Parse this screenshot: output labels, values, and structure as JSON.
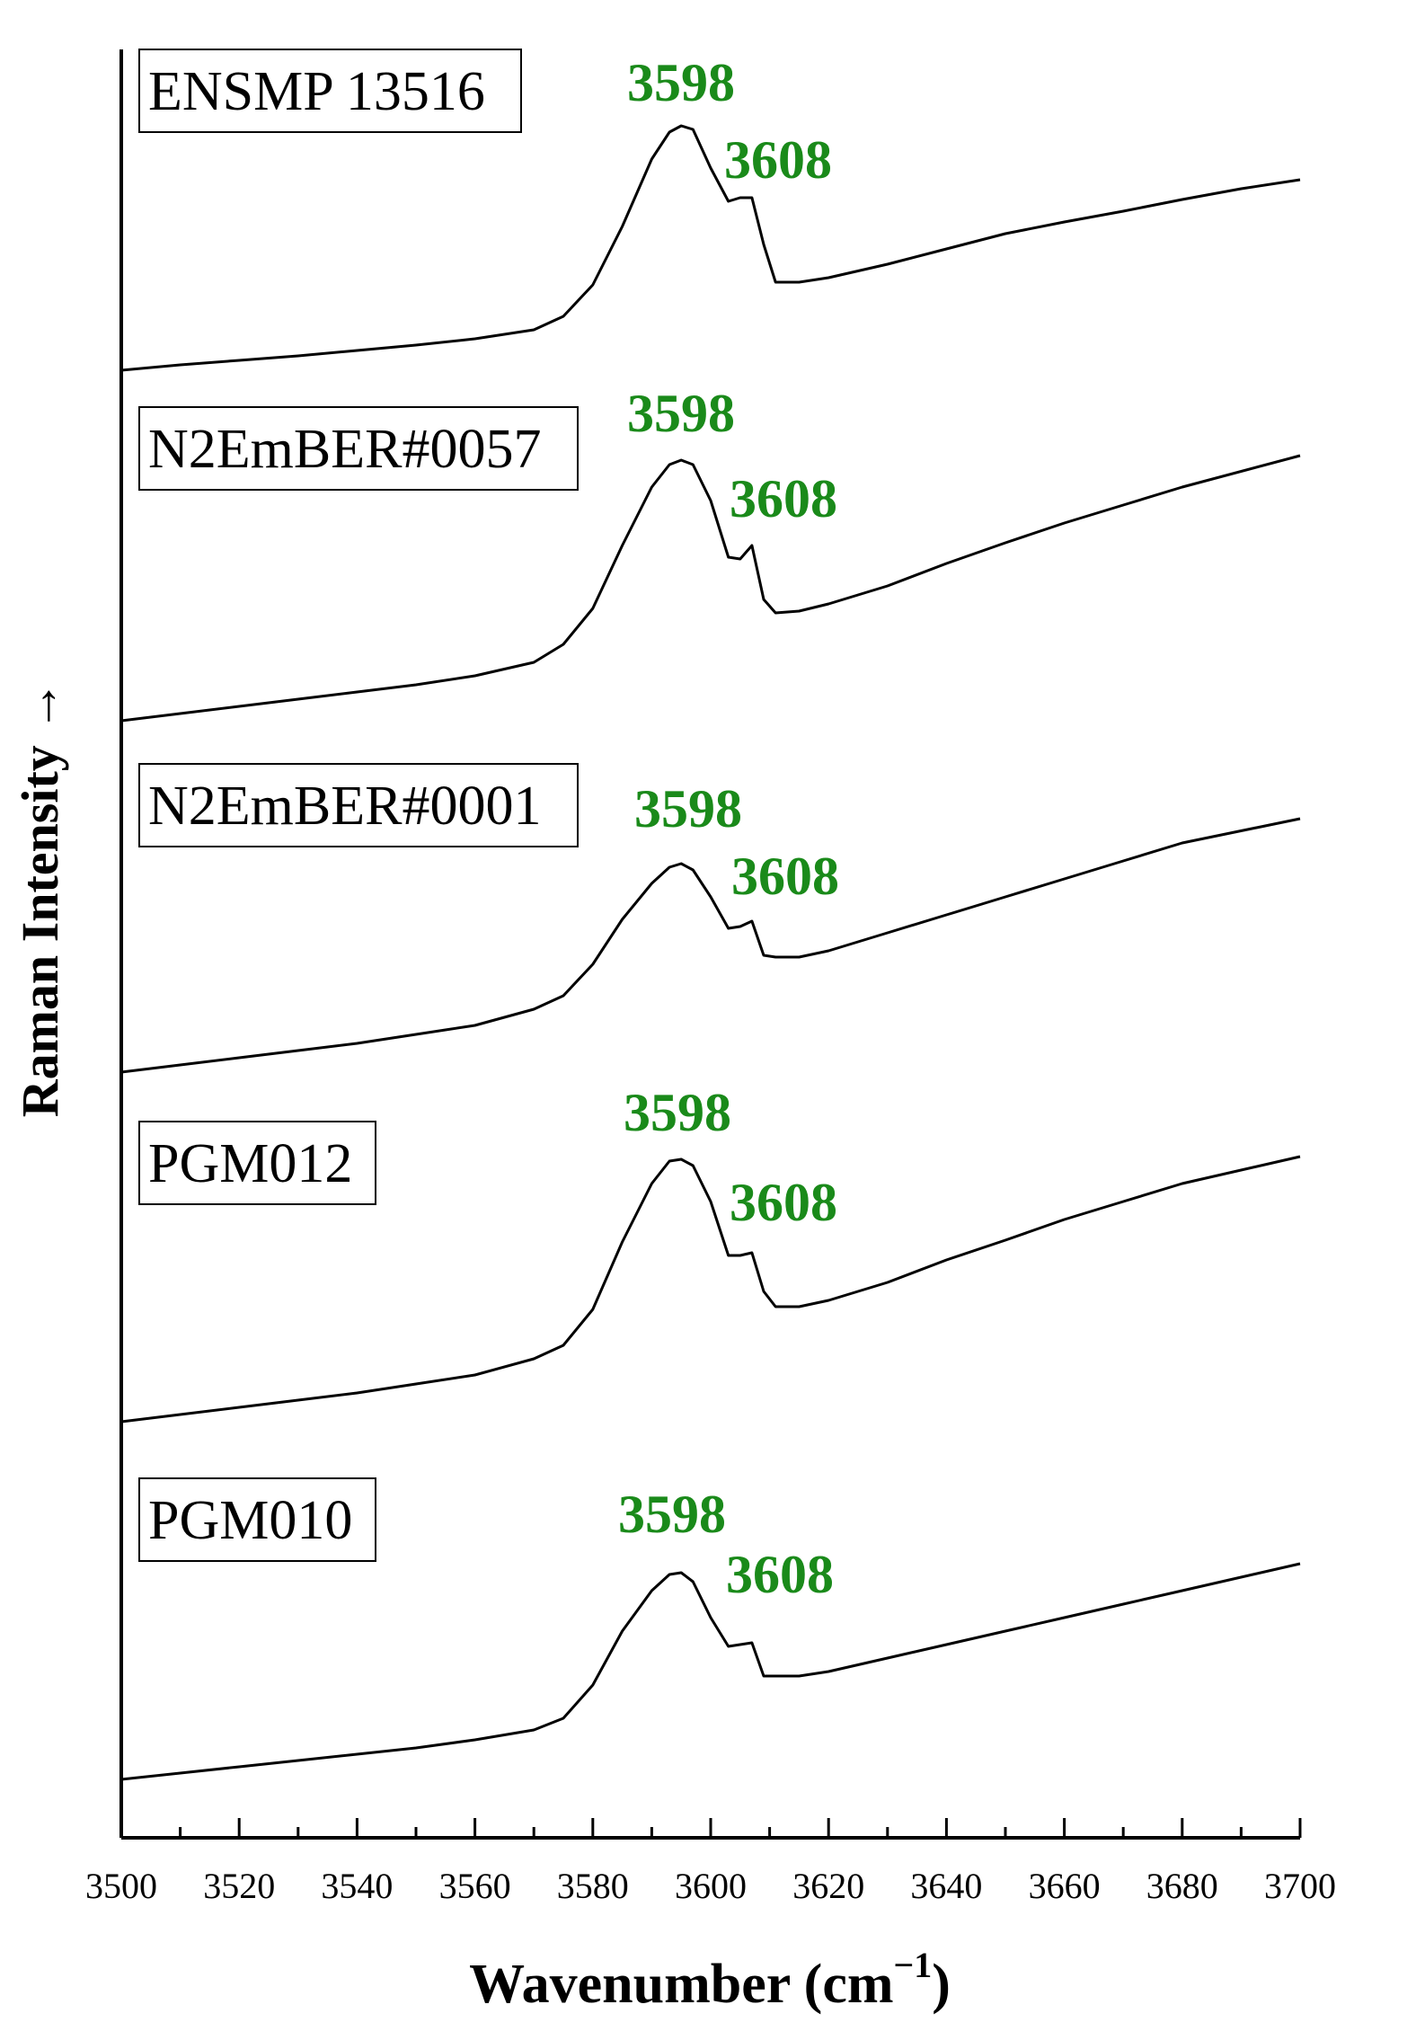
{
  "chart_data": {
    "type": "line",
    "xlabel": "Wavenumber (cm",
    "xlabel_sup": "−1",
    "xlabel_close": ")",
    "ylabel": "Raman Intensity →",
    "xlim": [
      3500,
      3700
    ],
    "x_ticks": [
      3500,
      3520,
      3540,
      3560,
      3580,
      3600,
      3620,
      3640,
      3660,
      3680,
      3700
    ],
    "x_minor_step": 10,
    "y_ticks_shown": false,
    "grid": false,
    "legend": "none",
    "line_color": "#000000",
    "peak_label_color": "#1a8a1a",
    "series": [
      {
        "name": "ENSMP 13516",
        "x": [
          3500,
          3510,
          3520,
          3530,
          3540,
          3550,
          3560,
          3570,
          3575,
          3580,
          3585,
          3590,
          3593,
          3595,
          3597,
          3600,
          3603,
          3605,
          3607,
          3609,
          3611,
          3615,
          3620,
          3630,
          3640,
          3650,
          3660,
          3670,
          3680,
          3690,
          3700
        ],
        "y": [
          0.0,
          0.06,
          0.11,
          0.16,
          0.22,
          0.28,
          0.35,
          0.45,
          0.6,
          0.95,
          1.6,
          2.35,
          2.65,
          2.72,
          2.68,
          2.25,
          1.88,
          1.92,
          1.92,
          1.4,
          0.98,
          0.98,
          1.03,
          1.18,
          1.35,
          1.52,
          1.65,
          1.77,
          1.9,
          2.02,
          2.12
        ],
        "peaks": [
          {
            "x": 3598,
            "label": "3598"
          },
          {
            "x": 3608,
            "label": "3608"
          }
        ]
      },
      {
        "name": "N2EmBER#0057",
        "x": [
          3500,
          3510,
          3520,
          3530,
          3540,
          3550,
          3560,
          3570,
          3575,
          3580,
          3585,
          3590,
          3593,
          3595,
          3597,
          3600,
          3603,
          3605,
          3607,
          3609,
          3611,
          3615,
          3620,
          3630,
          3640,
          3650,
          3660,
          3670,
          3680,
          3700
        ],
        "y": [
          0.0,
          0.08,
          0.16,
          0.24,
          0.32,
          0.4,
          0.5,
          0.65,
          0.85,
          1.25,
          1.95,
          2.6,
          2.85,
          2.9,
          2.85,
          2.45,
          1.82,
          1.8,
          1.95,
          1.35,
          1.2,
          1.22,
          1.3,
          1.5,
          1.75,
          1.98,
          2.2,
          2.4,
          2.6,
          2.95
        ],
        "peaks": [
          {
            "x": 3598,
            "label": "3598"
          },
          {
            "x": 3608,
            "label": "3608"
          }
        ]
      },
      {
        "name": "N2EmBER#0001",
        "x": [
          3500,
          3510,
          3520,
          3530,
          3540,
          3550,
          3560,
          3570,
          3575,
          3580,
          3585,
          3590,
          3593,
          3595,
          3597,
          3600,
          3603,
          3605,
          3607,
          3609,
          3611,
          3615,
          3620,
          3630,
          3640,
          3650,
          3660,
          3670,
          3680,
          3700
        ],
        "y": [
          0.0,
          0.08,
          0.16,
          0.24,
          0.32,
          0.42,
          0.52,
          0.7,
          0.85,
          1.2,
          1.7,
          2.1,
          2.28,
          2.32,
          2.25,
          1.95,
          1.6,
          1.62,
          1.68,
          1.3,
          1.28,
          1.28,
          1.35,
          1.55,
          1.75,
          1.95,
          2.15,
          2.35,
          2.55,
          2.82
        ],
        "peaks": [
          {
            "x": 3598,
            "label": "3598"
          },
          {
            "x": 3608,
            "label": "3608"
          }
        ]
      },
      {
        "name": "PGM012",
        "x": [
          3500,
          3510,
          3520,
          3530,
          3540,
          3550,
          3560,
          3570,
          3575,
          3580,
          3585,
          3590,
          3593,
          3595,
          3597,
          3600,
          3603,
          3605,
          3607,
          3609,
          3611,
          3615,
          3620,
          3630,
          3640,
          3650,
          3660,
          3670,
          3680,
          3700
        ],
        "y": [
          0.0,
          0.08,
          0.16,
          0.24,
          0.32,
          0.42,
          0.52,
          0.7,
          0.85,
          1.25,
          2.0,
          2.65,
          2.9,
          2.92,
          2.85,
          2.45,
          1.85,
          1.85,
          1.88,
          1.45,
          1.28,
          1.28,
          1.35,
          1.55,
          1.8,
          2.02,
          2.25,
          2.45,
          2.65,
          2.95
        ],
        "peaks": [
          {
            "x": 3598,
            "label": "3598"
          },
          {
            "x": 3608,
            "label": "3608"
          }
        ]
      },
      {
        "name": "PGM010",
        "x": [
          3500,
          3510,
          3520,
          3530,
          3540,
          3550,
          3560,
          3570,
          3575,
          3580,
          3585,
          3590,
          3593,
          3595,
          3597,
          3600,
          3603,
          3605,
          3607,
          3609,
          3611,
          3615,
          3620,
          3630,
          3640,
          3650,
          3660,
          3670,
          3680,
          3700
        ],
        "y": [
          0.0,
          0.07,
          0.14,
          0.21,
          0.28,
          0.35,
          0.44,
          0.55,
          0.68,
          1.05,
          1.65,
          2.1,
          2.28,
          2.3,
          2.2,
          1.8,
          1.48,
          1.5,
          1.52,
          1.15,
          1.15,
          1.15,
          1.2,
          1.35,
          1.5,
          1.65,
          1.8,
          1.95,
          2.1,
          2.4
        ],
        "peaks": [
          {
            "x": 3598,
            "label": "3598"
          },
          {
            "x": 3608,
            "label": "3608"
          }
        ]
      }
    ]
  }
}
